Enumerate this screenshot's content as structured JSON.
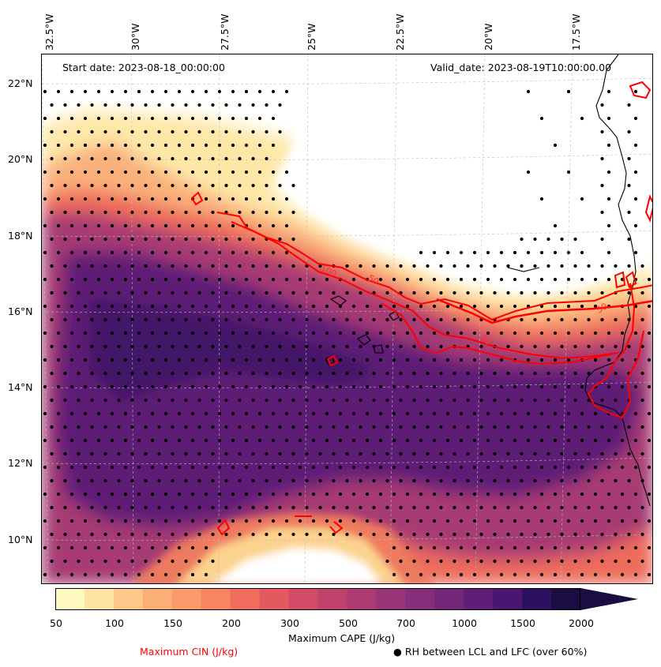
{
  "header": {
    "start_date": "Start date: 2023-08-18_00:00:00",
    "valid_date": "Valid_date: 2023-08-19T10:00:00.00"
  },
  "longitude_labels": [
    "32.5°W",
    "30°W",
    "27.5°W",
    "25°W",
    "22.5°W",
    "20°W",
    "17.5°W"
  ],
  "latitude_labels": [
    "22°N",
    "20°N",
    "18°N",
    "16°N",
    "14°N",
    "12°N",
    "10°N"
  ],
  "contour_labels": [
    "100",
    "50",
    "50",
    "50"
  ],
  "colorbar": {
    "ticks": [
      "50",
      "100",
      "150",
      "200",
      "300",
      "500",
      "700",
      "1000",
      "1500",
      "2000"
    ],
    "colors": [
      "#fef9bf",
      "#fee3a2",
      "#fdc88a",
      "#fcae77",
      "#fb9a6a",
      "#f7855f",
      "#f06c5c",
      "#e4585f",
      "#d34a67",
      "#c1416d",
      "#ad3a72",
      "#993477",
      "#852e79",
      "#722779",
      "#5f1f77",
      "#4a1670",
      "#2c115f",
      "#1b0c41"
    ],
    "label": "Maximum CAPE (J/kg)"
  },
  "legend": {
    "cin_label": "Maximum CIN (J/kg)",
    "rh_label": "● RH between LCL and LFC (over 60%)"
  },
  "colors": {
    "cin_contour": "#ff0000",
    "coastline": "#000000",
    "gridline": "#bbbbbb"
  }
}
